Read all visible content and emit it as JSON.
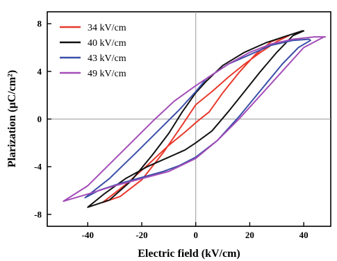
{
  "chart_data": {
    "type": "line",
    "xlabel": "Electric field (kV/cm)",
    "ylabel": "Plarization (μC/cm²)",
    "xlim": [
      -55,
      50
    ],
    "ylim": [
      -9,
      9
    ],
    "xticks": [
      -40,
      -20,
      0,
      20,
      40
    ],
    "yticks": [
      -8,
      -4,
      0,
      4,
      8
    ],
    "grid": false,
    "zero_lines": true,
    "legend_position": "top-left",
    "series": [
      {
        "name": "34 kV/cm",
        "color": "#e8382c",
        "x": [
          -34.5,
          -26,
          -18,
          -10,
          -4,
          0,
          5,
          10,
          16,
          22,
          28,
          34,
          34.5,
          30,
          24,
          18,
          12,
          6,
          0,
          -5,
          -12,
          -20,
          -28,
          -34.5
        ],
        "y": [
          -7.0,
          -5.5,
          -3.9,
          -2.2,
          -1.1,
          -0.3,
          0.6,
          2.2,
          3.9,
          5.4,
          6.5,
          7.0,
          7.0,
          6.5,
          5.6,
          4.6,
          3.5,
          2.3,
          1.2,
          -0.5,
          -2.8,
          -5.1,
          -6.5,
          -7.0
        ]
      },
      {
        "name": "40 kV/cm",
        "color": "#111111",
        "x": [
          -40,
          -34,
          -26,
          -18,
          -10,
          -4,
          0,
          6,
          12,
          18,
          24,
          30,
          36,
          40,
          39.5,
          34,
          26,
          18,
          10,
          4,
          0,
          -5,
          -10,
          -16,
          -24,
          -32,
          -40
        ],
        "y": [
          -7.4,
          -6.3,
          -5.0,
          -4.0,
          -3.2,
          -2.6,
          -2.0,
          -1.0,
          0.6,
          2.3,
          4.0,
          5.6,
          7.0,
          7.4,
          7.4,
          7.0,
          6.4,
          5.6,
          4.5,
          3.2,
          2.2,
          0.6,
          -1.2,
          -3.0,
          -5.2,
          -6.8,
          -7.4
        ]
      },
      {
        "name": "43 kV/cm",
        "color": "#3a4fa8",
        "x": [
          -41,
          -36,
          -28,
          -20,
          -12,
          -6,
          0,
          8,
          16,
          24,
          32,
          38,
          42.5,
          42,
          36,
          28,
          20,
          12,
          4,
          0,
          -6,
          -14,
          -22,
          -32,
          -41
        ],
        "y": [
          -6.6,
          -6.0,
          -5.4,
          -4.9,
          -4.4,
          -3.9,
          -3.2,
          -1.8,
          0.2,
          2.4,
          4.6,
          6.0,
          6.6,
          6.7,
          6.6,
          6.2,
          5.4,
          4.6,
          3.4,
          2.3,
          0.8,
          -1.0,
          -2.8,
          -5.0,
          -6.6
        ]
      },
      {
        "name": "49 kV/cm",
        "color": "#a34cb8",
        "x": [
          -49,
          -40,
          -30,
          -20,
          -10,
          0,
          8,
          16,
          24,
          32,
          40,
          47.5,
          48,
          44,
          36,
          28,
          20,
          12,
          6,
          0,
          -8,
          -16,
          -24,
          -32,
          -40,
          -49
        ],
        "y": [
          -6.9,
          -6.3,
          -5.6,
          -5.0,
          -4.4,
          -3.3,
          -1.8,
          0.0,
          2.0,
          4.0,
          6.0,
          6.9,
          6.9,
          6.9,
          6.7,
          6.3,
          5.6,
          4.6,
          3.7,
          2.8,
          1.5,
          -0.2,
          -2.0,
          -3.8,
          -5.6,
          -6.9
        ]
      }
    ]
  }
}
